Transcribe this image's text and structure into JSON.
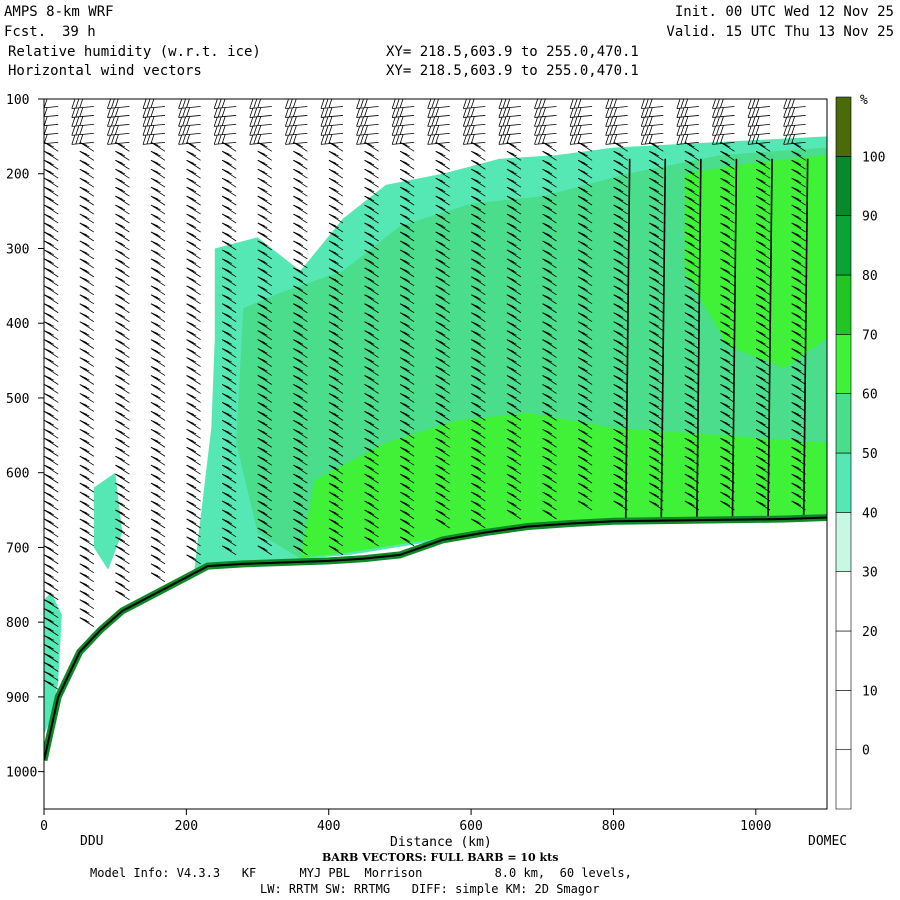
{
  "header": {
    "model": "AMPS 8-km WRF",
    "fcst_label": "Fcst.",
    "fcst_value": "39 h",
    "field1": "Relative humidity (w.r.t. ice)",
    "field2": "Horizontal wind vectors",
    "init": "Init. 00 UTC Wed 12 Nov 25",
    "valid": "Valid. 15 UTC Thu 13 Nov 25",
    "xy1": "XY= 218.5,603.9 to 255.0,470.1",
    "xy2": "XY= 218.5,603.9 to 255.0,470.1"
  },
  "footer": {
    "left_station": "DDU",
    "right_station": "DOMEC",
    "barb_note": "BARB VECTORS: FULL BARB = 10 kts",
    "model_info": "Model Info: V4.3.3   KF      MYJ PBL  Morrison          8.0 km,  60 levels,",
    "model_info2": "LW: RRTM SW: RRTMG   DIFF: simple KM: 2D Smagor"
  },
  "chart_data": {
    "type": "heatmap",
    "xlabel": "Distance (km)",
    "ylabel": "",
    "xlim": [
      0,
      1100
    ],
    "ylim": [
      1050,
      100
    ],
    "x_ticks": [
      0,
      200,
      400,
      600,
      800,
      1000
    ],
    "y_ticks": [
      100,
      200,
      300,
      400,
      500,
      600,
      700,
      800,
      900,
      1000
    ],
    "colorbar": {
      "unit": "%",
      "levels": [
        0,
        10,
        20,
        30,
        40,
        50,
        60,
        70,
        80,
        90,
        100
      ],
      "colors": [
        "#ffffff",
        "#ffffff",
        "#ffffff",
        "#ffffff",
        "#c8f7e4",
        "#55e8b4",
        "#49dd8c",
        "#3ff237",
        "#22c622",
        "#0aa336",
        "#088a2a",
        "#4b6b0b"
      ]
    },
    "terrain_km": [
      0,
      20,
      50,
      80,
      110,
      150,
      190,
      230,
      280,
      340,
      400,
      450,
      500,
      560,
      620,
      680,
      740,
      800,
      880,
      960,
      1040,
      1100
    ],
    "terrain_hpa": [
      985,
      900,
      840,
      810,
      785,
      765,
      745,
      725,
      722,
      720,
      718,
      715,
      710,
      690,
      680,
      672,
      668,
      665,
      664,
      663,
      662,
      660
    ],
    "rh_regions": [
      {
        "level": 40,
        "points": [
          [
            240,
            300
          ],
          [
            300,
            285
          ],
          [
            360,
            330
          ],
          [
            420,
            260
          ],
          [
            480,
            215
          ],
          [
            560,
            200
          ],
          [
            640,
            180
          ],
          [
            720,
            175
          ],
          [
            800,
            165
          ],
          [
            900,
            160
          ],
          [
            1100,
            150
          ],
          [
            1100,
            655
          ],
          [
            560,
            690
          ],
          [
            430,
            710
          ],
          [
            330,
            718
          ],
          [
            260,
            722
          ],
          [
            210,
            740
          ],
          [
            235,
            540
          ],
          [
            240,
            420
          ]
        ]
      },
      {
        "level": 50,
        "points": [
          [
            280,
            380
          ],
          [
            330,
            360
          ],
          [
            420,
            330
          ],
          [
            500,
            270
          ],
          [
            600,
            240
          ],
          [
            700,
            230
          ],
          [
            820,
            200
          ],
          [
            950,
            175
          ],
          [
            1100,
            165
          ],
          [
            1100,
            650
          ],
          [
            700,
            665
          ],
          [
            560,
            685
          ],
          [
            430,
            705
          ],
          [
            360,
            715
          ],
          [
            300,
            680
          ],
          [
            270,
            560
          ]
        ]
      },
      {
        "level": 60,
        "points": [
          [
            900,
            200
          ],
          [
            1000,
            185
          ],
          [
            1100,
            175
          ],
          [
            1100,
            420
          ],
          [
            1040,
            460
          ],
          [
            960,
            430
          ],
          [
            900,
            330
          ]
        ]
      },
      {
        "level": 60,
        "points": [
          [
            380,
            610
          ],
          [
            480,
            560
          ],
          [
            580,
            530
          ],
          [
            680,
            520
          ],
          [
            800,
            540
          ],
          [
            1100,
            560
          ],
          [
            1100,
            655
          ],
          [
            700,
            668
          ],
          [
            540,
            690
          ],
          [
            420,
            708
          ],
          [
            360,
            714
          ]
        ]
      },
      {
        "level": 40,
        "points": [
          [
            0,
            770
          ],
          [
            10,
            760
          ],
          [
            25,
            790
          ],
          [
            20,
            880
          ],
          [
            10,
            930
          ],
          [
            0,
            950
          ]
        ]
      },
      {
        "level": 40,
        "points": [
          [
            70,
            620
          ],
          [
            100,
            600
          ],
          [
            110,
            680
          ],
          [
            90,
            730
          ],
          [
            70,
            700
          ]
        ]
      }
    ],
    "wind_barb_columns_km": [
      20,
      70,
      120,
      170,
      220,
      270,
      320,
      370,
      420,
      470,
      520,
      570,
      620,
      670,
      720,
      770,
      820,
      870,
      920,
      970,
      1020,
      1070
    ]
  }
}
